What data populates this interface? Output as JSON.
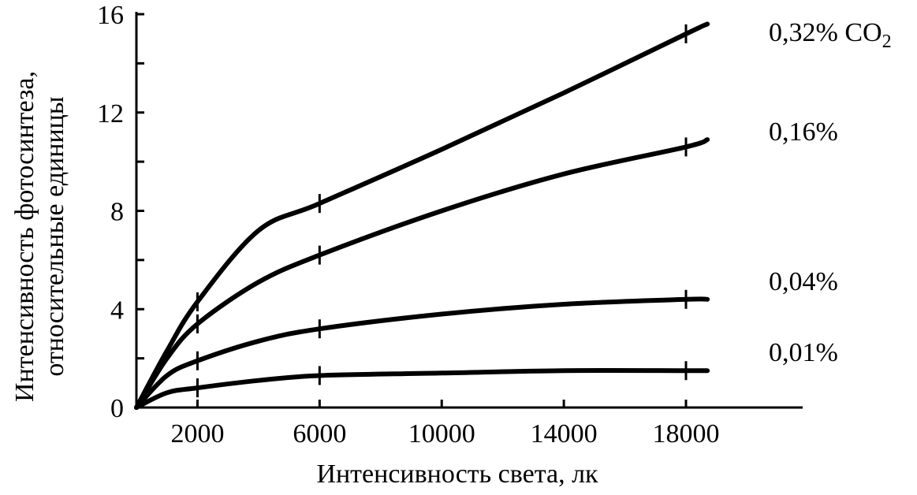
{
  "chart_data": {
    "type": "line",
    "title": "",
    "xlabel": "Интенсивность света, лк",
    "ylabel_line1": "Интенсивность фотосинтеза,",
    "ylabel_line2": "относительные единицы",
    "xlim": [
      0,
      22000
    ],
    "ylim": [
      0,
      16
    ],
    "x_ticks": [
      2000,
      6000,
      10000,
      14000,
      18000
    ],
    "x_tick_labels": [
      "2000",
      "6000",
      "10000",
      "14000",
      "18000"
    ],
    "y_ticks": [
      0,
      4,
      8,
      12,
      16
    ],
    "y_tick_labels": [
      "0",
      "4",
      "8",
      "12",
      "16"
    ],
    "y_minor_ticks": [
      2,
      6,
      10,
      14
    ],
    "grid": false,
    "marked_x": [
      2000,
      6000,
      18000
    ],
    "series": [
      {
        "name": "0,32% CO",
        "name_subscript": "2",
        "x": [
          0,
          1000,
          2000,
          4000,
          6000,
          10000,
          14000,
          18000,
          18700
        ],
        "y": [
          0,
          2.3,
          4.3,
          7.2,
          8.3,
          10.5,
          12.8,
          15.2,
          15.6
        ]
      },
      {
        "name": "0,16%",
        "x": [
          0,
          1000,
          2000,
          4000,
          6000,
          10000,
          14000,
          18000,
          18700
        ],
        "y": [
          0,
          2.0,
          3.4,
          5.1,
          6.2,
          8.0,
          9.5,
          10.6,
          10.9
        ]
      },
      {
        "name": "0,04%",
        "x": [
          0,
          1000,
          2000,
          4000,
          6000,
          10000,
          14000,
          18000,
          18700
        ],
        "y": [
          0,
          1.3,
          1.9,
          2.7,
          3.2,
          3.8,
          4.2,
          4.4,
          4.4
        ]
      },
      {
        "name": "0,01%",
        "x": [
          0,
          1000,
          2000,
          4000,
          6000,
          10000,
          14000,
          18000,
          18700
        ],
        "y": [
          0,
          0.6,
          0.8,
          1.1,
          1.3,
          1.4,
          1.5,
          1.5,
          1.5
        ]
      }
    ]
  }
}
